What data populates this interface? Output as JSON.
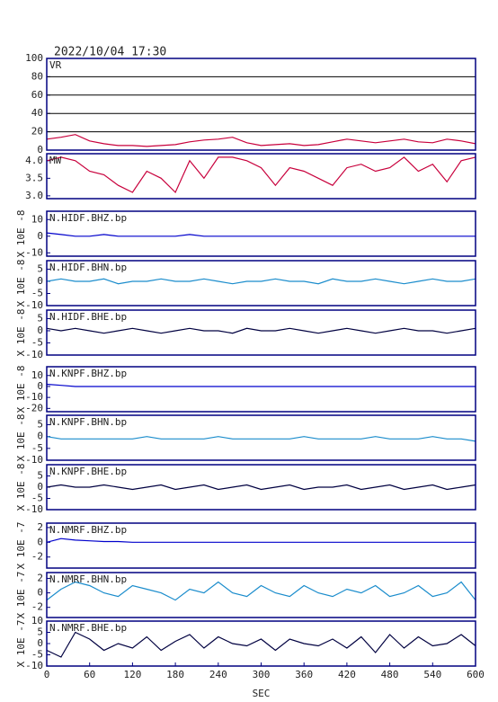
{
  "chart_data": [
    {
      "type": "line",
      "title": "2022/10/04  17:30",
      "label": "VR",
      "color": "#c8003c",
      "grid": true,
      "x": [
        0,
        20,
        40,
        60,
        80,
        100,
        120,
        140,
        160,
        180,
        200,
        220,
        240,
        260,
        280,
        300,
        320,
        340,
        360,
        380,
        400,
        420,
        440,
        460,
        480,
        500,
        520,
        540,
        560,
        580,
        600
      ],
      "values": [
        12,
        14,
        17,
        10,
        7,
        5,
        5,
        4,
        5,
        6,
        9,
        11,
        12,
        14,
        8,
        5,
        6,
        7,
        5,
        6,
        9,
        12,
        10,
        8,
        10,
        12,
        9,
        8,
        12,
        10,
        7
      ],
      "xlim": [
        0,
        600
      ],
      "ylim": [
        0,
        100
      ],
      "yticks": [
        0,
        20,
        40,
        60,
        80,
        100
      ]
    },
    {
      "type": "line",
      "label": "MW",
      "color": "#c8003c",
      "x": [
        0,
        20,
        40,
        60,
        80,
        100,
        120,
        140,
        160,
        180,
        200,
        220,
        240,
        260,
        280,
        300,
        320,
        340,
        360,
        380,
        400,
        420,
        440,
        460,
        480,
        500,
        520,
        540,
        560,
        580,
        600
      ],
      "values": [
        4.0,
        4.1,
        4.0,
        3.7,
        3.6,
        3.3,
        3.1,
        3.7,
        3.5,
        3.1,
        4.0,
        3.5,
        4.1,
        4.1,
        4.0,
        3.8,
        3.3,
        3.8,
        3.7,
        3.5,
        3.3,
        3.8,
        3.9,
        3.7,
        3.8,
        4.1,
        3.7,
        3.9,
        3.4,
        4.0,
        4.1
      ],
      "xlim": [
        0,
        600
      ],
      "ylim": [
        2.92,
        4.2
      ],
      "yticks": [
        {
          "value": 3,
          "label": "3.0"
        },
        3.5,
        {
          "value": 4,
          "label": "4.0"
        }
      ]
    },
    {
      "type": "line",
      "label": "N.HIDF.BHZ.bp",
      "ylabel": "X 10E -8",
      "color": "#0000cc",
      "x": [
        0,
        20,
        40,
        60,
        80,
        100,
        120,
        140,
        160,
        180,
        200,
        220,
        240,
        260,
        280,
        300,
        320,
        340,
        360,
        380,
        400,
        420,
        440,
        460,
        480,
        500,
        520,
        540,
        560,
        580,
        600
      ],
      "values": [
        2,
        1,
        0,
        0,
        1,
        0,
        0,
        0,
        0,
        0,
        1,
        0,
        0,
        0,
        0,
        0,
        0,
        0,
        0,
        0,
        0,
        0,
        0,
        0,
        0,
        0,
        0,
        0,
        0,
        0,
        0
      ],
      "xlim": [
        0,
        600
      ],
      "ylim": [
        -12,
        15
      ],
      "yticks": [
        -10,
        0,
        10
      ]
    },
    {
      "type": "line",
      "label": "N.HIDF.BHN.bp",
      "ylabel": "X 10E -8",
      "color": "#1a8ccc",
      "x": [
        0,
        20,
        40,
        60,
        80,
        100,
        120,
        140,
        160,
        180,
        200,
        220,
        240,
        260,
        280,
        300,
        320,
        340,
        360,
        380,
        400,
        420,
        440,
        460,
        480,
        500,
        520,
        540,
        560,
        580,
        600
      ],
      "values": [
        0,
        1,
        0,
        0,
        1,
        -1,
        0,
        0,
        1,
        0,
        0,
        1,
        0,
        -1,
        0,
        0,
        1,
        0,
        0,
        -1,
        1,
        0,
        0,
        1,
        0,
        -1,
        0,
        1,
        0,
        0,
        1
      ],
      "xlim": [
        0,
        600
      ],
      "ylim": [
        -10,
        8.5
      ],
      "yticks": [
        -10,
        -5,
        0,
        5
      ]
    },
    {
      "type": "line",
      "label": "N.HIDF.BHE.bp",
      "ylabel": "X 10E -8",
      "color": "#000040",
      "x": [
        0,
        20,
        40,
        60,
        80,
        100,
        120,
        140,
        160,
        180,
        200,
        220,
        240,
        260,
        280,
        300,
        320,
        340,
        360,
        380,
        400,
        420,
        440,
        460,
        480,
        500,
        520,
        540,
        560,
        580,
        600
      ],
      "values": [
        1,
        0,
        1,
        0,
        -1,
        0,
        1,
        0,
        -1,
        0,
        1,
        0,
        0,
        -1,
        1,
        0,
        0,
        1,
        0,
        -1,
        0,
        1,
        0,
        -1,
        0,
        1,
        0,
        0,
        -1,
        0,
        1
      ],
      "xlim": [
        0,
        600
      ],
      "ylim": [
        -10,
        8.5
      ],
      "yticks": [
        -10,
        -5,
        0,
        5
      ]
    },
    {
      "type": "line",
      "label": "N.KNPF.BHZ.bp",
      "ylabel": "X 10E -8",
      "color": "#0000cc",
      "x": [
        0,
        20,
        40,
        60,
        80,
        100,
        120,
        140,
        160,
        180,
        200,
        220,
        240,
        260,
        280,
        300,
        320,
        340,
        360,
        380,
        400,
        420,
        440,
        460,
        480,
        500,
        520,
        540,
        560,
        580,
        600
      ],
      "values": [
        2,
        1,
        0,
        0,
        0,
        0,
        0,
        0,
        0,
        0,
        0,
        0,
        0,
        0,
        0,
        0,
        0,
        0,
        0,
        0,
        0,
        0,
        0,
        0,
        0,
        0,
        0,
        0,
        0,
        0,
        0
      ],
      "xlim": [
        0,
        600
      ],
      "ylim": [
        -23,
        18
      ],
      "yticks": [
        -20,
        -10,
        0,
        10
      ]
    },
    {
      "type": "line",
      "label": "N.KNPF.BHN.bp",
      "ylabel": "X 10E -8",
      "color": "#1a8ccc",
      "x": [
        0,
        20,
        40,
        60,
        80,
        100,
        120,
        140,
        160,
        180,
        200,
        220,
        240,
        260,
        280,
        300,
        320,
        340,
        360,
        380,
        400,
        420,
        440,
        460,
        480,
        500,
        520,
        540,
        560,
        580,
        600
      ],
      "values": [
        0,
        -1,
        -1,
        -1,
        -1,
        -1,
        -1,
        0,
        -1,
        -1,
        -1,
        -1,
        0,
        -1,
        -1,
        -1,
        -1,
        -1,
        0,
        -1,
        -1,
        -1,
        -1,
        0,
        -1,
        -1,
        -1,
        0,
        -1,
        -1,
        -2
      ],
      "xlim": [
        0,
        600
      ],
      "ylim": [
        -10,
        9
      ],
      "yticks": [
        -10,
        -5,
        0,
        5
      ]
    },
    {
      "type": "line",
      "label": "N.KNPF.BHE.bp",
      "ylabel": "X 10E -8",
      "color": "#000040",
      "x": [
        0,
        20,
        40,
        60,
        80,
        100,
        120,
        140,
        160,
        180,
        200,
        220,
        240,
        260,
        280,
        300,
        320,
        340,
        360,
        380,
        400,
        420,
        440,
        460,
        480,
        500,
        520,
        540,
        560,
        580,
        600
      ],
      "values": [
        0,
        1,
        0,
        0,
        1,
        0,
        -1,
        0,
        1,
        -1,
        0,
        1,
        -1,
        0,
        1,
        -1,
        0,
        1,
        -1,
        0,
        0,
        1,
        -1,
        0,
        1,
        -1,
        0,
        1,
        -1,
        0,
        1
      ],
      "xlim": [
        0,
        600
      ],
      "ylim": [
        -10,
        10
      ],
      "yticks": [
        -10,
        -5,
        0,
        5
      ]
    },
    {
      "type": "line",
      "label": "N.NMRF.BHZ.bp",
      "ylabel": "X 10E -7",
      "color": "#0000cc",
      "x": [
        0,
        20,
        40,
        60,
        80,
        100,
        120,
        140,
        160,
        180,
        200,
        220,
        240,
        260,
        280,
        300,
        320,
        340,
        360,
        380,
        400,
        420,
        440,
        460,
        480,
        500,
        520,
        540,
        560,
        580,
        600
      ],
      "values": [
        0,
        0.5,
        0.3,
        0.2,
        0.1,
        0.1,
        0,
        0,
        0,
        0,
        0,
        0,
        0,
        0,
        0,
        0,
        0,
        0,
        0,
        0,
        0,
        0,
        0,
        0,
        0,
        0,
        0,
        0,
        0,
        0,
        0
      ],
      "xlim": [
        0,
        600
      ],
      "ylim": [
        -3.5,
        2.6
      ],
      "yticks": [
        -2,
        0,
        2
      ]
    },
    {
      "type": "line",
      "label": "N.NMRF.BHN.bp",
      "ylabel": "X 10E -7",
      "color": "#1a8ccc",
      "x": [
        0,
        20,
        40,
        60,
        80,
        100,
        120,
        140,
        160,
        180,
        200,
        220,
        240,
        260,
        280,
        300,
        320,
        340,
        360,
        380,
        400,
        420,
        440,
        460,
        480,
        500,
        520,
        540,
        560,
        580,
        600
      ],
      "values": [
        -1,
        0.5,
        1.5,
        1,
        0,
        -0.5,
        1,
        0.5,
        0,
        -1,
        0.5,
        0,
        1.5,
        0,
        -0.5,
        1,
        0,
        -0.5,
        1,
        0,
        -0.5,
        0.5,
        0,
        1,
        -0.5,
        0,
        1,
        -0.5,
        0,
        1.5,
        -1
      ],
      "xlim": [
        0,
        600
      ],
      "ylim": [
        -3.4,
        2.8
      ],
      "yticks": [
        -2,
        0,
        2
      ]
    },
    {
      "type": "line",
      "label": "N.NMRF.BHE.bp",
      "ylabel": "X 10E -7",
      "color": "#000040",
      "xlabel": "SEC",
      "x": [
        0,
        20,
        40,
        60,
        80,
        100,
        120,
        140,
        160,
        180,
        200,
        220,
        240,
        260,
        280,
        300,
        320,
        340,
        360,
        380,
        400,
        420,
        440,
        460,
        480,
        500,
        520,
        540,
        560,
        580,
        600
      ],
      "values": [
        -3,
        -6,
        5,
        2,
        -3,
        0,
        -2,
        3,
        -3,
        1,
        4,
        -2,
        3,
        0,
        -1,
        2,
        -3,
        2,
        0,
        -1,
        2,
        -2,
        3,
        -4,
        4,
        -2,
        3,
        -1,
        0,
        4,
        -1
      ],
      "xlim": [
        0,
        600
      ],
      "xticks": [
        0,
        60,
        120,
        180,
        240,
        300,
        360,
        420,
        480,
        540,
        600
      ],
      "ylim": [
        -10,
        10
      ],
      "yticks": [
        -10,
        -5,
        0,
        5,
        10
      ]
    }
  ]
}
